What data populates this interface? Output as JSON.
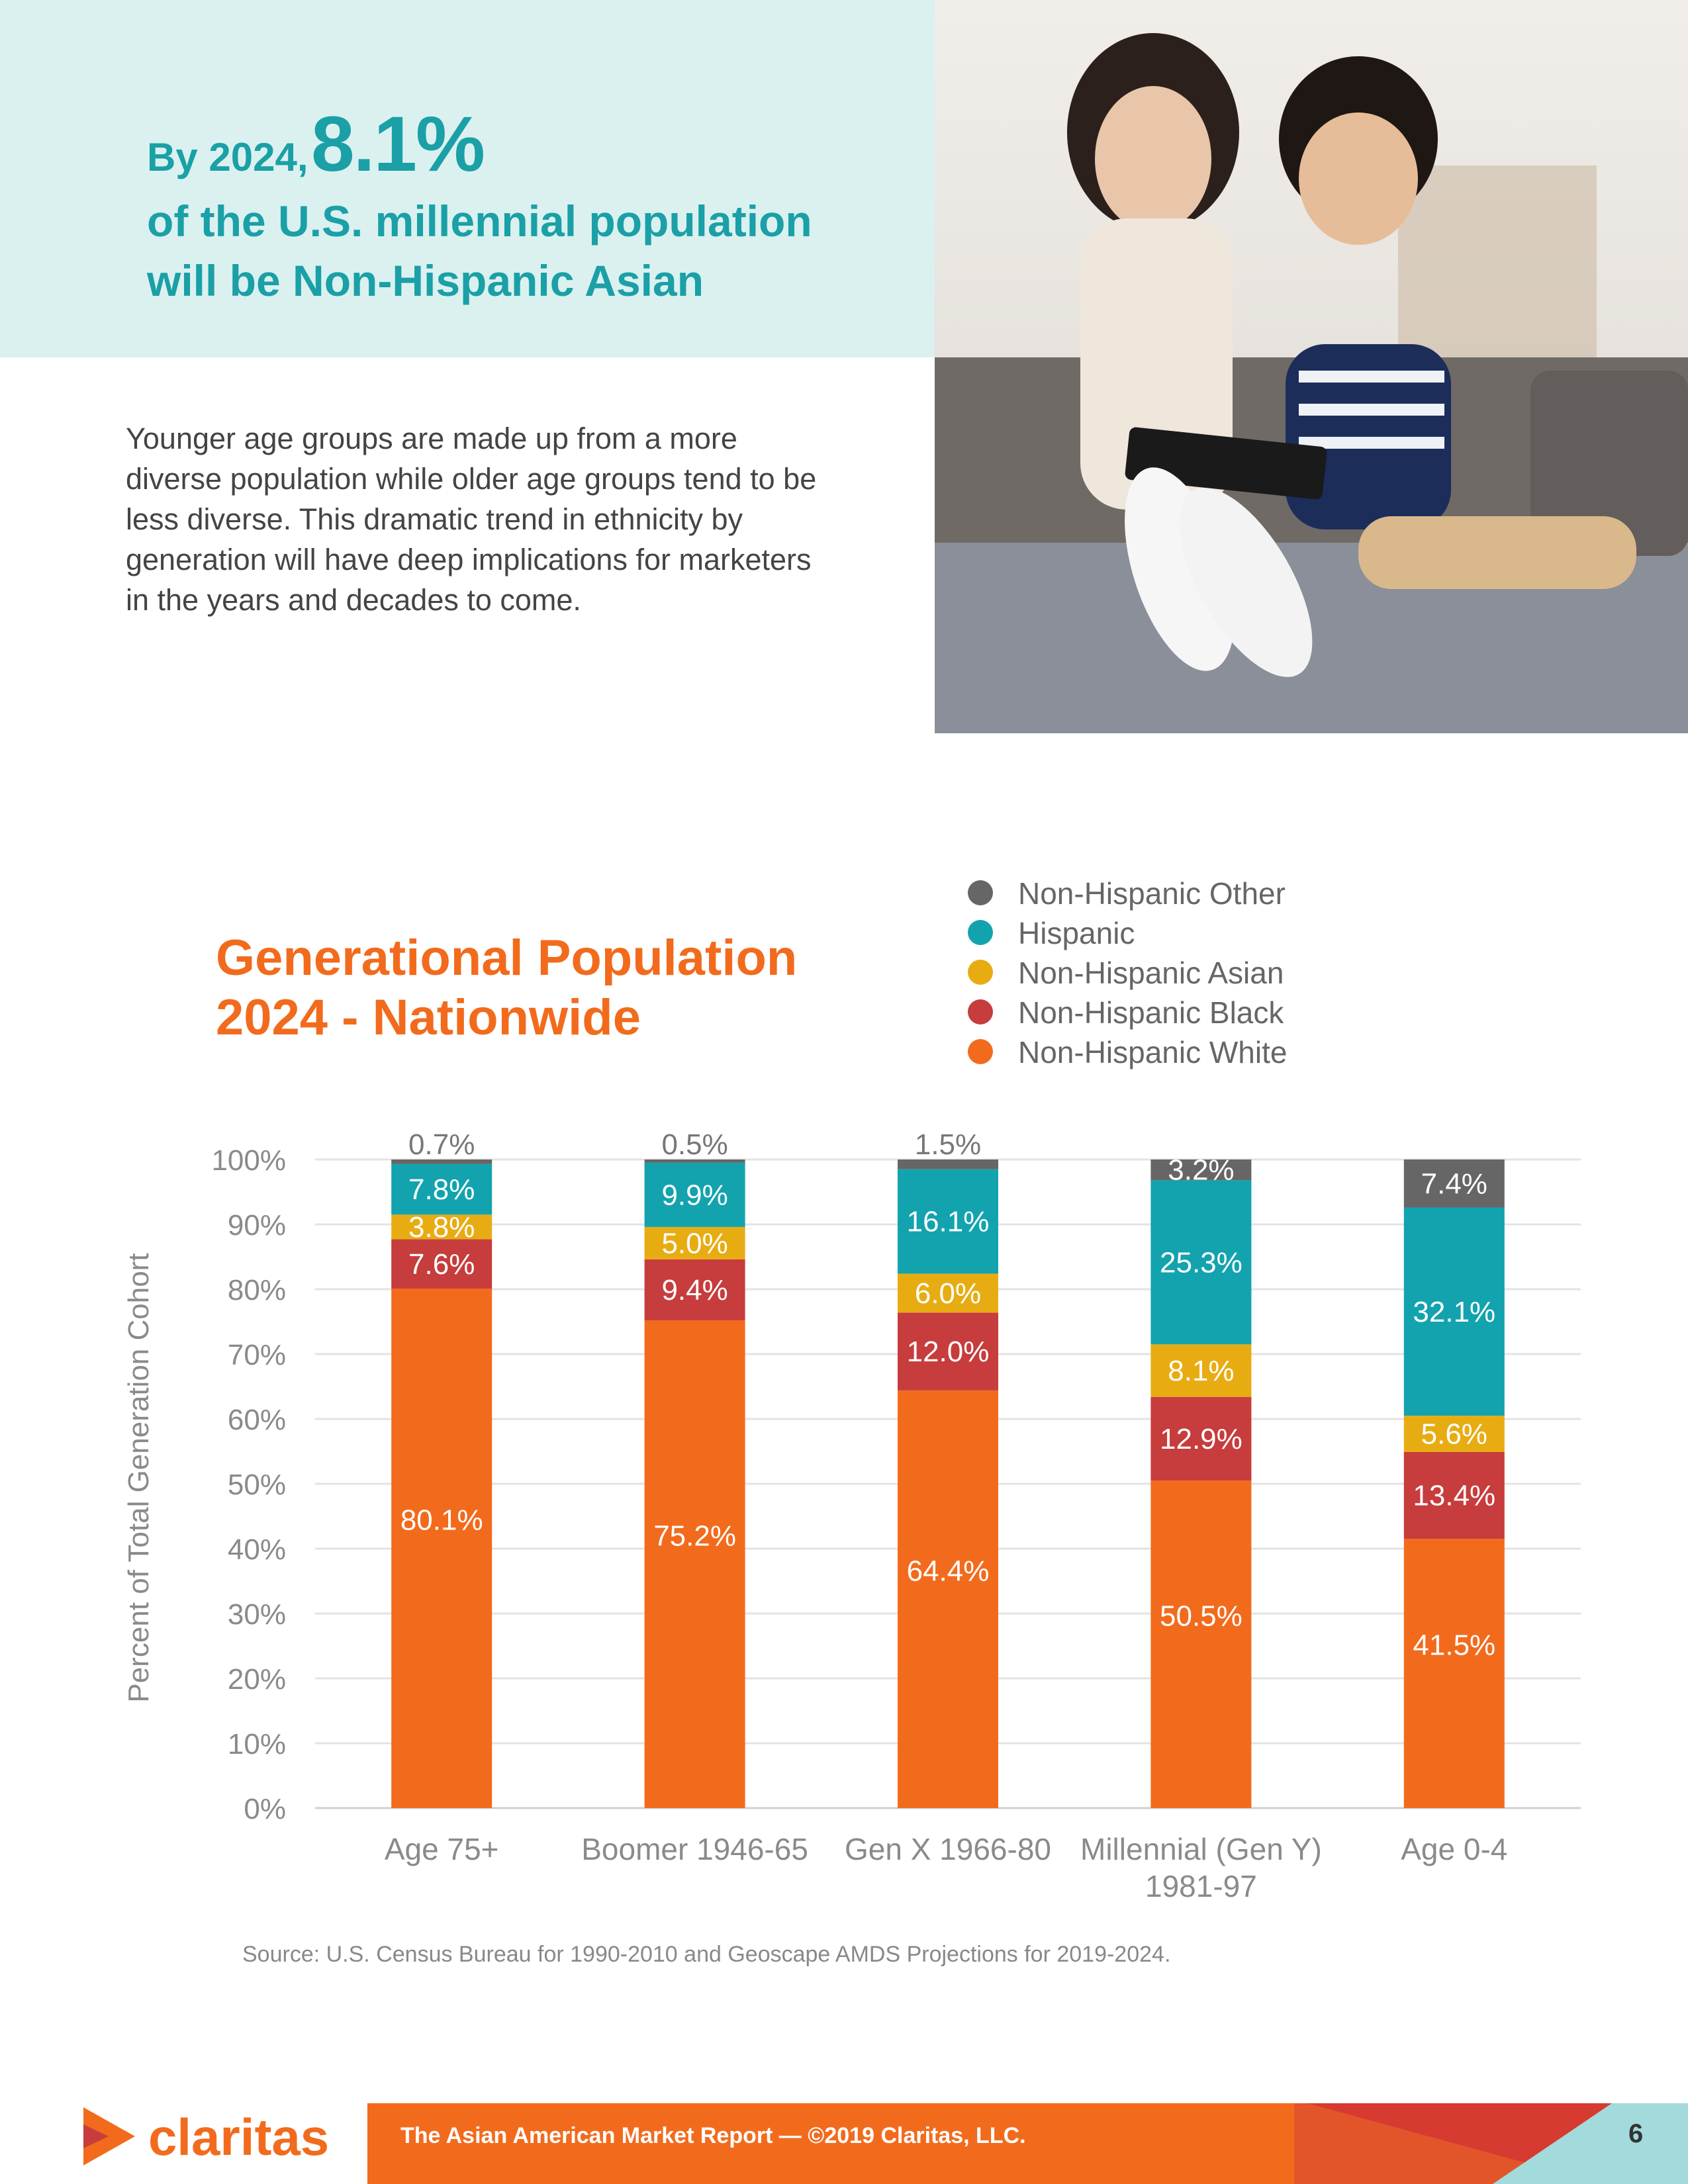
{
  "hero": {
    "prefix": "By 2024,",
    "stat": "8.1%",
    "line2": "of the U.S. millennial population",
    "line3": "will be Non-Hispanic Asian"
  },
  "intro": "Younger age groups are made up from a more diverse population while older age groups tend to be less diverse. This dramatic trend in ethnicity by generation will have deep implications for marketers in the years and decades to come.",
  "colors": {
    "teal": "#1aa0a6",
    "hero_bg": "#daf1f0",
    "orange": "#f26b1d"
  },
  "chart_data": {
    "type": "bar",
    "stacked": true,
    "title": [
      "Generational Population",
      "2024 - Nationwide"
    ],
    "ylabel": "Percent of Total Generation Cohort",
    "ylim": [
      0,
      100
    ],
    "yticks": [
      "0%",
      "10%",
      "20%",
      "30%",
      "40%",
      "50%",
      "60%",
      "70%",
      "80%",
      "90%",
      "100%"
    ],
    "grid": true,
    "legend_position": "top-right",
    "categories": [
      [
        "Age 75+"
      ],
      [
        "Boomer 1946-65"
      ],
      [
        "Gen X 1966-80"
      ],
      [
        "Millennial (Gen Y)",
        "1981-97"
      ],
      [
        "Age 0-4"
      ]
    ],
    "series": [
      {
        "name": "Non-Hispanic White",
        "color": "#f26b1d",
        "values": [
          80.1,
          75.2,
          64.4,
          50.5,
          41.5
        ],
        "labels": [
          "80.1%",
          "75.2%",
          "64.4%",
          "50.5%",
          "41.5%"
        ]
      },
      {
        "name": "Non-Hispanic Black",
        "color": "#c73c3c",
        "values": [
          7.6,
          9.4,
          12.0,
          12.9,
          13.4
        ],
        "labels": [
          "7.6%",
          "9.4%",
          "12.0%",
          "12.9%",
          "13.4%"
        ]
      },
      {
        "name": "Non-Hispanic Asian",
        "color": "#e8ac13",
        "values": [
          3.8,
          5.0,
          6.0,
          8.1,
          5.6
        ],
        "labels": [
          "3.8%",
          "5.0%",
          "6.0%",
          "8.1%",
          "5.6%"
        ]
      },
      {
        "name": "Hispanic",
        "color": "#13a3ae",
        "values": [
          7.8,
          9.9,
          16.1,
          25.3,
          32.1
        ],
        "labels": [
          "7.8%",
          "9.9%",
          "16.1%",
          "25.3%",
          "32.1%"
        ]
      },
      {
        "name": "Non-Hispanic Other",
        "color": "#666666",
        "values": [
          0.7,
          0.5,
          1.5,
          3.2,
          7.4
        ],
        "labels": [
          "0.7%",
          "0.5%",
          "1.5%",
          "3.2%",
          "7.4%"
        ]
      }
    ]
  },
  "source": "Source: U.S. Census Bureau for 1990-2010 and Geoscape AMDS Projections for 2019-2024.",
  "footer": {
    "logo": "claritas",
    "text": "The Asian American Market Report — ©2019 Claritas, LLC.",
    "page": "6"
  }
}
